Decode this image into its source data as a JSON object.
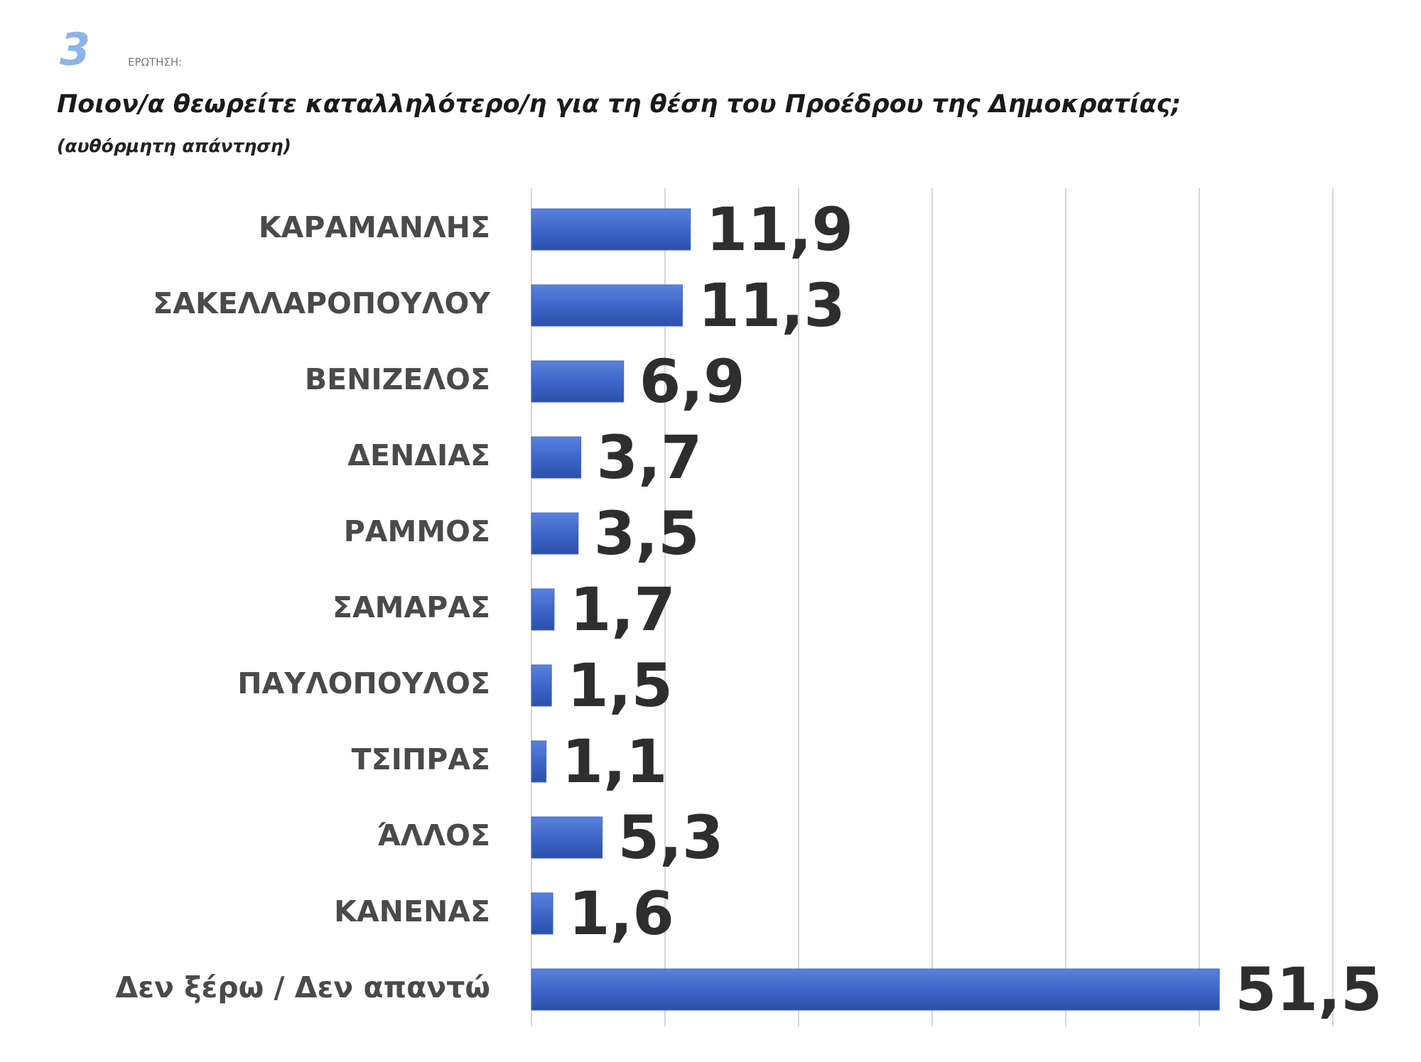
{
  "chart_data": {
    "type": "hbar",
    "logo": "3",
    "label": "ΕΡΩΤΗΣΗ:",
    "title": "Ποιον/α  θεωρείτε καταλληλότερο/η  για τη θέση του Προέδρου της Δημοκρατίας;",
    "subtitle": "(αυθόρμητη απάντηση)",
    "categories": [
      "ΚΑΡΑΜΑΝΛΗΣ",
      "ΣΑΚΕΛΛΑΡΟΠΟΥΛΟΥ",
      "ΒΕΝΙΖΕΛΟΣ",
      "ΔΕΝΔΙΑΣ",
      "ΡΑΜΜΟΣ",
      "ΣΑΜΑΡΑΣ",
      "ΠΑΥΛΟΠΟΥΛΟΣ",
      "ΤΣΙΠΡΑΣ",
      "ΆΛΛΟΣ",
      "ΚΑΝΕΝΑΣ",
      "Δεν ξέρω / Δεν απαντώ"
    ],
    "values": [
      11.9,
      11.3,
      6.9,
      3.7,
      3.5,
      1.7,
      1.5,
      1.1,
      5.3,
      1.6,
      51.5
    ],
    "value_labels": [
      "11,9",
      "11,3",
      "6,9",
      "3,7",
      "3,5",
      "1,7",
      "1,5",
      "1,1",
      "5,3",
      "1,6",
      "51,5"
    ],
    "color": "#3d66c9",
    "xlim": [
      0,
      60
    ],
    "xticks": [
      0,
      10,
      20,
      30,
      40,
      50,
      60
    ],
    "grid": true
  }
}
